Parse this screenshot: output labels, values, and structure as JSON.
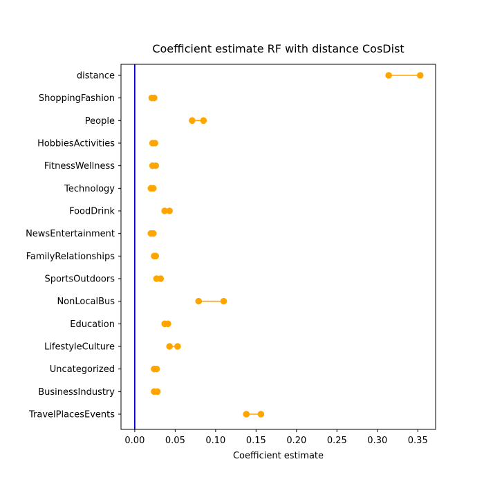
{
  "chart_data": {
    "type": "dot-range",
    "title": "Coefficient estimate RF  with distance CosDist",
    "xlabel": "Coefficient estimate",
    "ylabel": "",
    "xlim": [
      -0.017,
      0.372
    ],
    "xticks": [
      0.0,
      0.05,
      0.1,
      0.15,
      0.2,
      0.25,
      0.3,
      0.35
    ],
    "xtick_labels": [
      "0.00",
      "0.05",
      "0.10",
      "0.15",
      "0.20",
      "0.25",
      "0.30",
      "0.35"
    ],
    "reference_line": {
      "x": 0.0,
      "color": "#0000cc"
    },
    "grid": false,
    "series_color": "#ffa500",
    "categories": [
      "distance",
      "ShoppingFashion",
      "People",
      "HobbiesActivities",
      "FitnessWellness",
      "Technology",
      "FoodDrink",
      "NewsEntertainment",
      "FamilyRelationships",
      "SportsOutdoors",
      "NonLocalBus",
      "Education",
      "LifestyleCulture",
      "Uncategorized",
      "BusinessIndustry",
      "TravelPlacesEvents"
    ],
    "ranges": [
      [
        0.314,
        0.353
      ],
      [
        0.021,
        0.024
      ],
      [
        0.071,
        0.085
      ],
      [
        0.022,
        0.025
      ],
      [
        0.022,
        0.026
      ],
      [
        0.02,
        0.023
      ],
      [
        0.037,
        0.043
      ],
      [
        0.02,
        0.023
      ],
      [
        0.024,
        0.026
      ],
      [
        0.027,
        0.032
      ],
      [
        0.079,
        0.11
      ],
      [
        0.037,
        0.041
      ],
      [
        0.043,
        0.053
      ],
      [
        0.024,
        0.027
      ],
      [
        0.024,
        0.028
      ],
      [
        0.138,
        0.156
      ]
    ]
  }
}
